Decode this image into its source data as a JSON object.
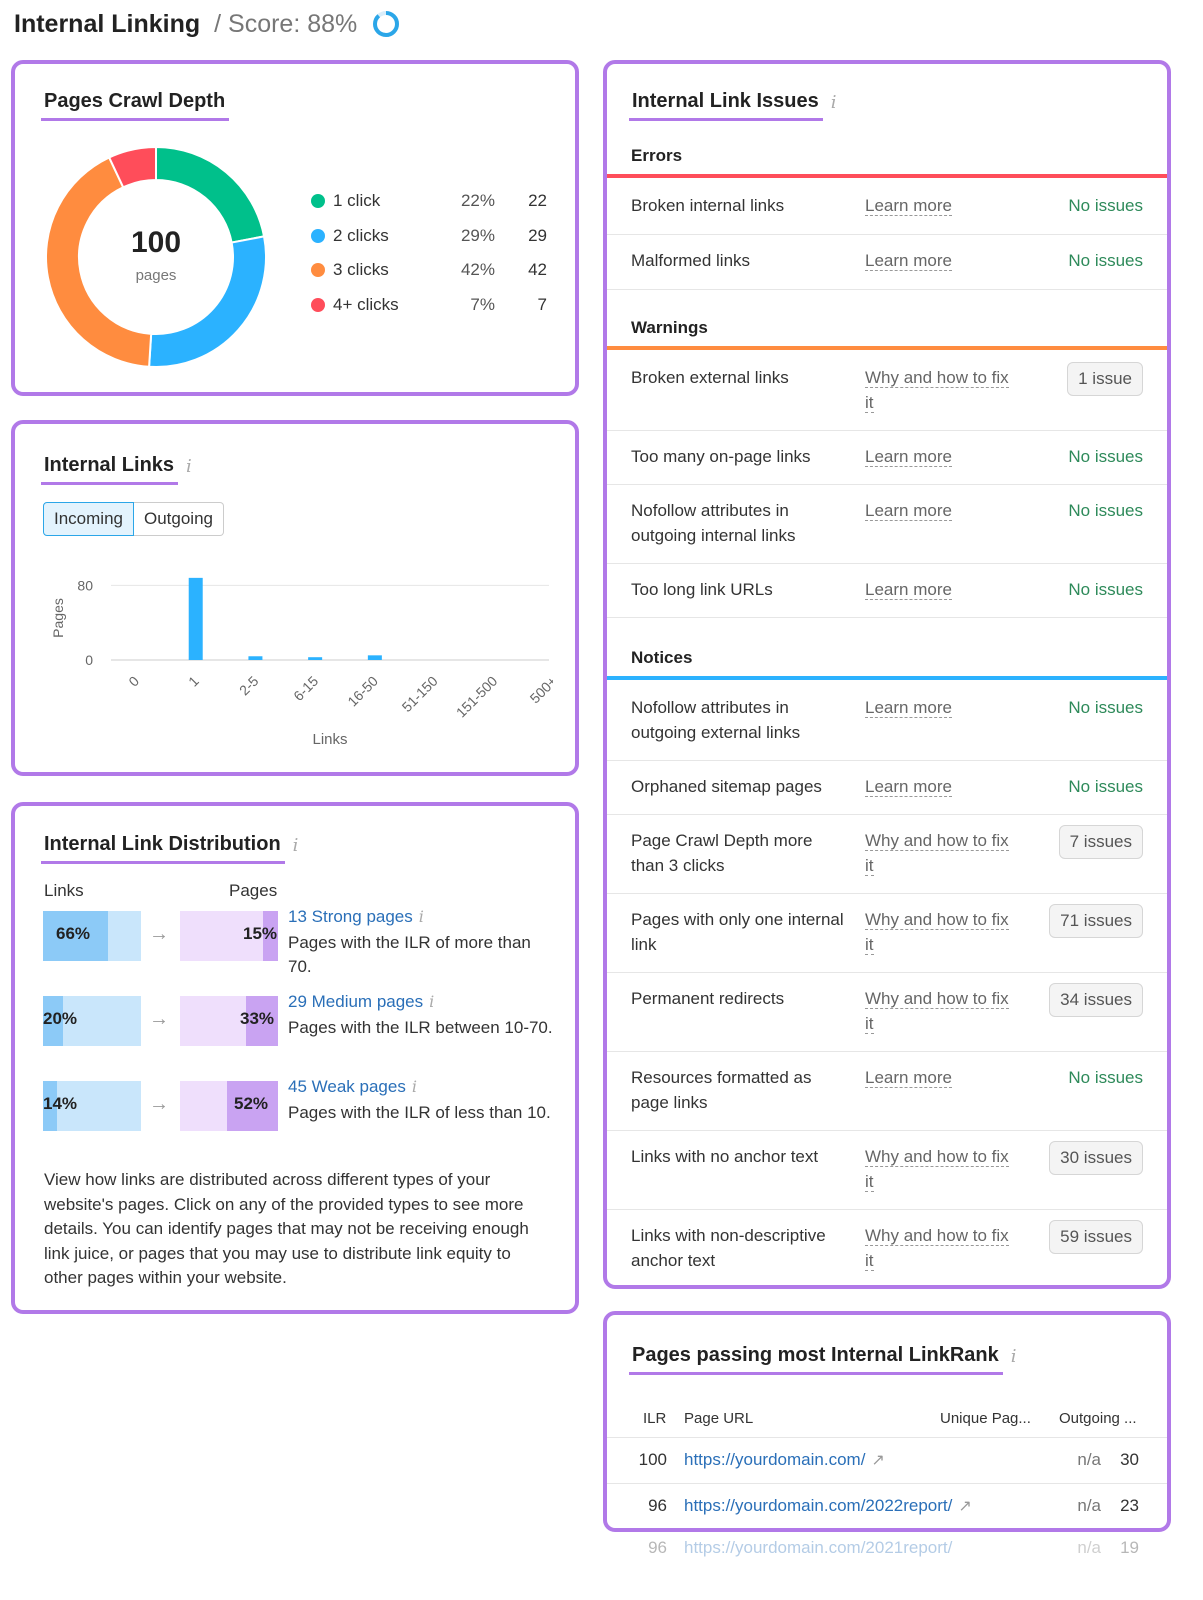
{
  "header": {
    "title": "Internal Linking",
    "score": "/ Score: 88%",
    "score_value": 0.88,
    "score_color": "#2ba6e8"
  },
  "crawl_depth": {
    "title": "Pages Crawl Depth",
    "total": "100",
    "total_label": "pages",
    "legend": [
      {
        "label": "1 click",
        "pct": "22%",
        "count": "22",
        "color": "#00c08b"
      },
      {
        "label": "2 clicks",
        "pct": "29%",
        "count": "29",
        "color": "#2bb2ff"
      },
      {
        "label": "3 clicks",
        "pct": "42%",
        "count": "42",
        "color": "#ff8c3f"
      },
      {
        "label": "4+ clicks",
        "pct": "7%",
        "count": "7",
        "color": "#ff4d5a"
      }
    ]
  },
  "internal_links": {
    "title": "Internal Links",
    "tabs": [
      "Incoming",
      "Outgoing"
    ],
    "active_tab": "Incoming",
    "chart_data": {
      "type": "bar",
      "categories": [
        "0",
        "1",
        "2-5",
        "6-15",
        "16-50",
        "51-150",
        "151-500",
        "500+"
      ],
      "values": [
        0,
        88,
        4,
        3,
        5,
        0,
        0,
        0
      ],
      "xlabel": "Links",
      "ylabel": "Pages",
      "yticks": [
        "0",
        "80"
      ],
      "ylim": [
        0,
        90
      ],
      "color": "#2bb2ff",
      "grid": true
    }
  },
  "distribution": {
    "title": "Internal Link Distribution",
    "col_links": "Links",
    "col_pages": "Pages",
    "rows": [
      {
        "links_pct": "66%",
        "links_frac": 0.66,
        "pages_pct": "15%",
        "pages_frac": 0.15,
        "link": "13 Strong pages",
        "desc": "Pages with the ILR of more than 70."
      },
      {
        "links_pct": "20%",
        "links_frac": 0.2,
        "pages_pct": "33%",
        "pages_frac": 0.33,
        "link": "29 Medium pages",
        "desc": "Pages with the ILR between 10-70."
      },
      {
        "links_pct": "14%",
        "links_frac": 0.14,
        "pages_pct": "52%",
        "pages_frac": 0.52,
        "link": "45 Weak pages",
        "desc": "Pages with the ILR of less than 10."
      }
    ],
    "description": "View how links are distributed across different types of your website's pages. Click on any of the provided types to see more details. You can identify pages that may not be receiving enough link juice, or pages that you may use to distribute link equity to other pages within your website."
  },
  "issues": {
    "title": "Internal Link Issues",
    "sections": [
      {
        "name": "Errors",
        "color": "#ff4d5a",
        "items": [
          {
            "name": "Broken internal links",
            "link": "Learn more",
            "status": "No issues"
          },
          {
            "name": "Malformed links",
            "link": "Learn more",
            "status": "No issues"
          }
        ]
      },
      {
        "name": "Warnings",
        "color": "#ff8c3f",
        "items": [
          {
            "name": "Broken external links",
            "link": "Why and how to fix it",
            "badge": "1 issue"
          },
          {
            "name": "Too many on-page links",
            "link": "Learn more",
            "status": "No issues"
          },
          {
            "name": "Nofollow attributes in outgoing internal links",
            "link": "Learn more",
            "status": "No issues"
          },
          {
            "name": "Too long link URLs",
            "link": "Learn more",
            "status": "No issues"
          }
        ]
      },
      {
        "name": "Notices",
        "color": "#2bb2ff",
        "items": [
          {
            "name": "Nofollow attributes in outgoing external links",
            "link": "Learn more",
            "status": "No issues"
          },
          {
            "name": "Orphaned sitemap pages",
            "link": "Learn more",
            "status": "No issues"
          },
          {
            "name": "Page Crawl Depth more than 3 clicks",
            "link": "Why and how to fix it",
            "badge": "7 issues"
          },
          {
            "name": "Pages with only one internal link",
            "link": "Why and how to fix it",
            "badge": "71 issues"
          },
          {
            "name": "Permanent redirects",
            "link": "Why and how to fix it",
            "badge": "34 issues"
          },
          {
            "name": "Resources formatted as page links",
            "link": "Learn more",
            "status": "No issues"
          },
          {
            "name": "Links with no anchor text",
            "link": "Why and how to fix it",
            "badge": "30 issues"
          },
          {
            "name": "Links with non-descriptive anchor text",
            "link": "Why and how to fix it",
            "badge": "59 issues"
          }
        ]
      }
    ]
  },
  "linkrank": {
    "title": "Pages passing most Internal LinkRank",
    "columns": [
      "ILR",
      "Page URL",
      "Unique Pag...",
      "Outgoing ..."
    ],
    "rows": [
      {
        "ilr": "100",
        "url": "https://yourdomain.com/",
        "unique": "n/a",
        "outgoing": "30"
      },
      {
        "ilr": "96",
        "url": "https://yourdomain.com/2022report/",
        "unique": "n/a",
        "outgoing": "23"
      }
    ],
    "overflow_row": {
      "ilr": "96",
      "url": "https://yourdomain.com/2021report/",
      "unique": "n/a",
      "outgoing": "19"
    }
  }
}
